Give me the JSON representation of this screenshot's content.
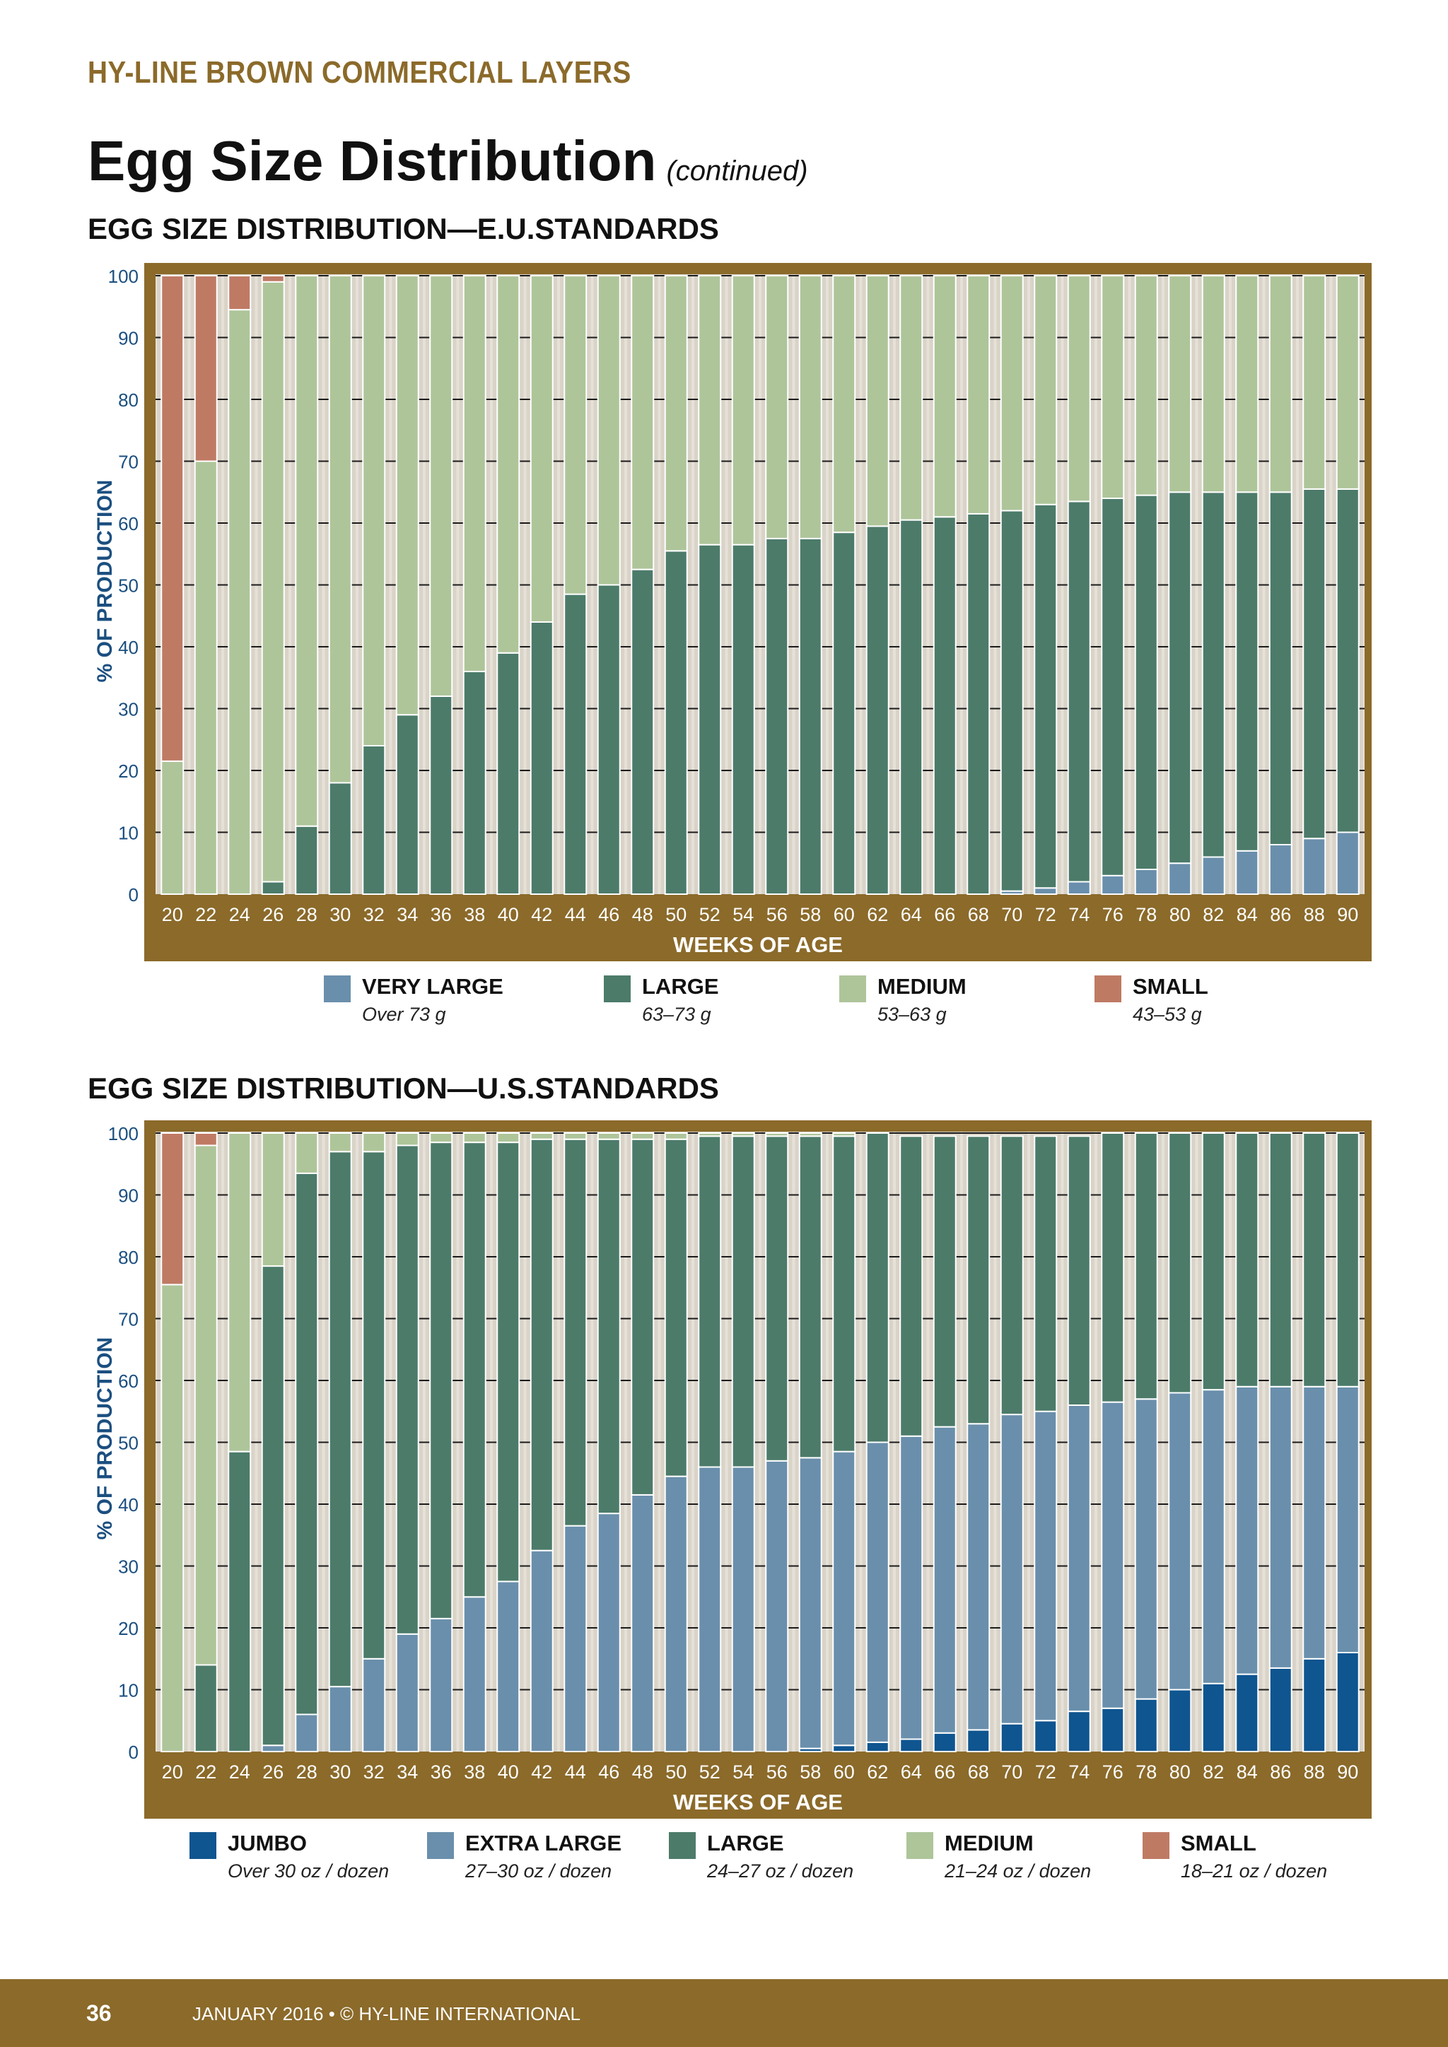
{
  "header": {
    "brand": "HY-LINE BROWN COMMERCIAL LAYERS",
    "title": "Egg Size Distribution",
    "title_suffix": "(continued)"
  },
  "footer": {
    "page_number": "36",
    "text": "JANUARY 2016 • © HY-LINE INTERNATIONAL"
  },
  "chart_data": [
    {
      "type": "bar",
      "stacked": true,
      "title": "EGG SIZE DISTRIBUTION—E.U.STANDARDS",
      "xlabel": "WEEKS OF AGE",
      "ylabel": "% OF PRODUCTION",
      "ylim": [
        0,
        100
      ],
      "yticks": [
        "0",
        "10",
        "20",
        "30",
        "40",
        "50",
        "60",
        "70",
        "80",
        "90",
        "100"
      ],
      "grid": true,
      "categories": [
        "20",
        "22",
        "24",
        "26",
        "28",
        "30",
        "32",
        "34",
        "36",
        "38",
        "40",
        "42",
        "44",
        "46",
        "48",
        "50",
        "52",
        "54",
        "56",
        "58",
        "60",
        "62",
        "64",
        "66",
        "68",
        "70",
        "72",
        "74",
        "76",
        "78",
        "80",
        "82",
        "84",
        "86",
        "88",
        "90"
      ],
      "series": [
        {
          "name": "VERY LARGE",
          "range": "Over 73 g",
          "color": "#6a8fac",
          "values": [
            0,
            0,
            0,
            0,
            0,
            0,
            0,
            0,
            0,
            0,
            0,
            0,
            0,
            0,
            0,
            0,
            0,
            0,
            0,
            0,
            0,
            0,
            0,
            0,
            0,
            0.5,
            1,
            2,
            3,
            4,
            5,
            6,
            7,
            8,
            9,
            10
          ]
        },
        {
          "name": "LARGE",
          "range": "63–73 g",
          "color": "#4c7b6a",
          "values": [
            0,
            0,
            0,
            2,
            11,
            18,
            24,
            29,
            32,
            36,
            39,
            44,
            48.5,
            50,
            52.5,
            55.5,
            56.5,
            56.5,
            57.5,
            57.5,
            58.5,
            59.5,
            60.5,
            61,
            61.5,
            61.5,
            62,
            61.5,
            61,
            60.5,
            60,
            59,
            58,
            57,
            56.5,
            55.5
          ]
        },
        {
          "name": "MEDIUM",
          "range": "53–63 g",
          "color": "#aec59a",
          "values": [
            21.5,
            70,
            94.5,
            97,
            89,
            82,
            76,
            71,
            68,
            64,
            61,
            56,
            51.5,
            50,
            47.5,
            44.5,
            43.5,
            43.5,
            42.5,
            42.5,
            41.5,
            40.5,
            39.5,
            39,
            38.5,
            38,
            37,
            36.5,
            36,
            35.5,
            35,
            35,
            35,
            35,
            34.5,
            34.5
          ]
        },
        {
          "name": "SMALL",
          "range": "43–53 g",
          "color": "#bf7a64",
          "values": [
            78.5,
            30,
            5.5,
            1,
            0,
            0,
            0,
            0,
            0,
            0,
            0,
            0,
            0,
            0,
            0,
            0,
            0,
            0,
            0,
            0,
            0,
            0,
            0,
            0,
            0,
            0,
            0,
            0,
            0,
            0,
            0,
            0,
            0,
            0,
            0,
            0
          ]
        }
      ]
    },
    {
      "type": "bar",
      "stacked": true,
      "title": "EGG SIZE DISTRIBUTION—U.S.STANDARDS",
      "xlabel": "WEEKS OF AGE",
      "ylabel": "% OF PRODUCTION",
      "ylim": [
        0,
        100
      ],
      "yticks": [
        "0",
        "10",
        "20",
        "30",
        "40",
        "50",
        "60",
        "70",
        "80",
        "90",
        "100"
      ],
      "grid": true,
      "categories": [
        "20",
        "22",
        "24",
        "26",
        "28",
        "30",
        "32",
        "34",
        "36",
        "38",
        "40",
        "42",
        "44",
        "46",
        "48",
        "50",
        "52",
        "54",
        "56",
        "58",
        "60",
        "62",
        "64",
        "66",
        "68",
        "70",
        "72",
        "74",
        "76",
        "78",
        "80",
        "82",
        "84",
        "86",
        "88",
        "90"
      ],
      "series": [
        {
          "name": "JUMBO",
          "range": "Over 30 oz / dozen",
          "color": "#0f5590",
          "values": [
            0,
            0,
            0,
            0,
            0,
            0,
            0,
            0,
            0,
            0,
            0,
            0,
            0,
            0,
            0,
            0,
            0,
            0,
            0,
            0.5,
            1,
            1.5,
            2,
            3,
            3.5,
            4.5,
            5,
            6.5,
            7,
            8.5,
            10,
            11,
            12.5,
            13.5,
            15,
            16
          ]
        },
        {
          "name": "EXTRA LARGE",
          "range": "27–30 oz / dozen",
          "color": "#6a8fac",
          "values": [
            0,
            0,
            0,
            1,
            6,
            10.5,
            15,
            19,
            21.5,
            25,
            27.5,
            32.5,
            36.5,
            38.5,
            41.5,
            44.5,
            46,
            46,
            47,
            47,
            47.5,
            48.5,
            49,
            49.5,
            49.5,
            50,
            50,
            49.5,
            49.5,
            48.5,
            48,
            47.5,
            46.5,
            45.5,
            44,
            43
          ]
        },
        {
          "name": "LARGE",
          "range": "24–27 oz / dozen",
          "color": "#4c7b6a",
          "values": [
            0,
            14,
            48.5,
            77.5,
            87.5,
            86.5,
            82,
            79,
            77,
            73.5,
            71,
            66.5,
            62.5,
            60.5,
            57.5,
            54.5,
            53.5,
            53.5,
            52.5,
            52,
            51,
            50,
            48.5,
            47,
            46.5,
            45,
            44.5,
            43.5,
            43.5,
            43,
            42,
            41.5,
            41,
            41,
            41,
            41
          ]
        },
        {
          "name": "MEDIUM",
          "range": "21–24 oz / dozen",
          "color": "#aec59a",
          "values": [
            75.5,
            84,
            51.5,
            21.5,
            6.5,
            3,
            3,
            2,
            1.5,
            1.5,
            1.5,
            1,
            1,
            1,
            1,
            1,
            0.5,
            0.5,
            0.5,
            0.5,
            0.5,
            0,
            0,
            0,
            0,
            0,
            0,
            0,
            0,
            0,
            0,
            0,
            0,
            0,
            0,
            0
          ]
        },
        {
          "name": "SMALL",
          "range": "18–21 oz / dozen",
          "color": "#bf7a64",
          "values": [
            24.5,
            2,
            0,
            0,
            0,
            0,
            0,
            0,
            0,
            0,
            0,
            0,
            0,
            0,
            0,
            0,
            0,
            0,
            0,
            0,
            0,
            0,
            0,
            0,
            0,
            0,
            0,
            0,
            0,
            0,
            0,
            0,
            0,
            0,
            0,
            0
          ]
        }
      ]
    }
  ]
}
